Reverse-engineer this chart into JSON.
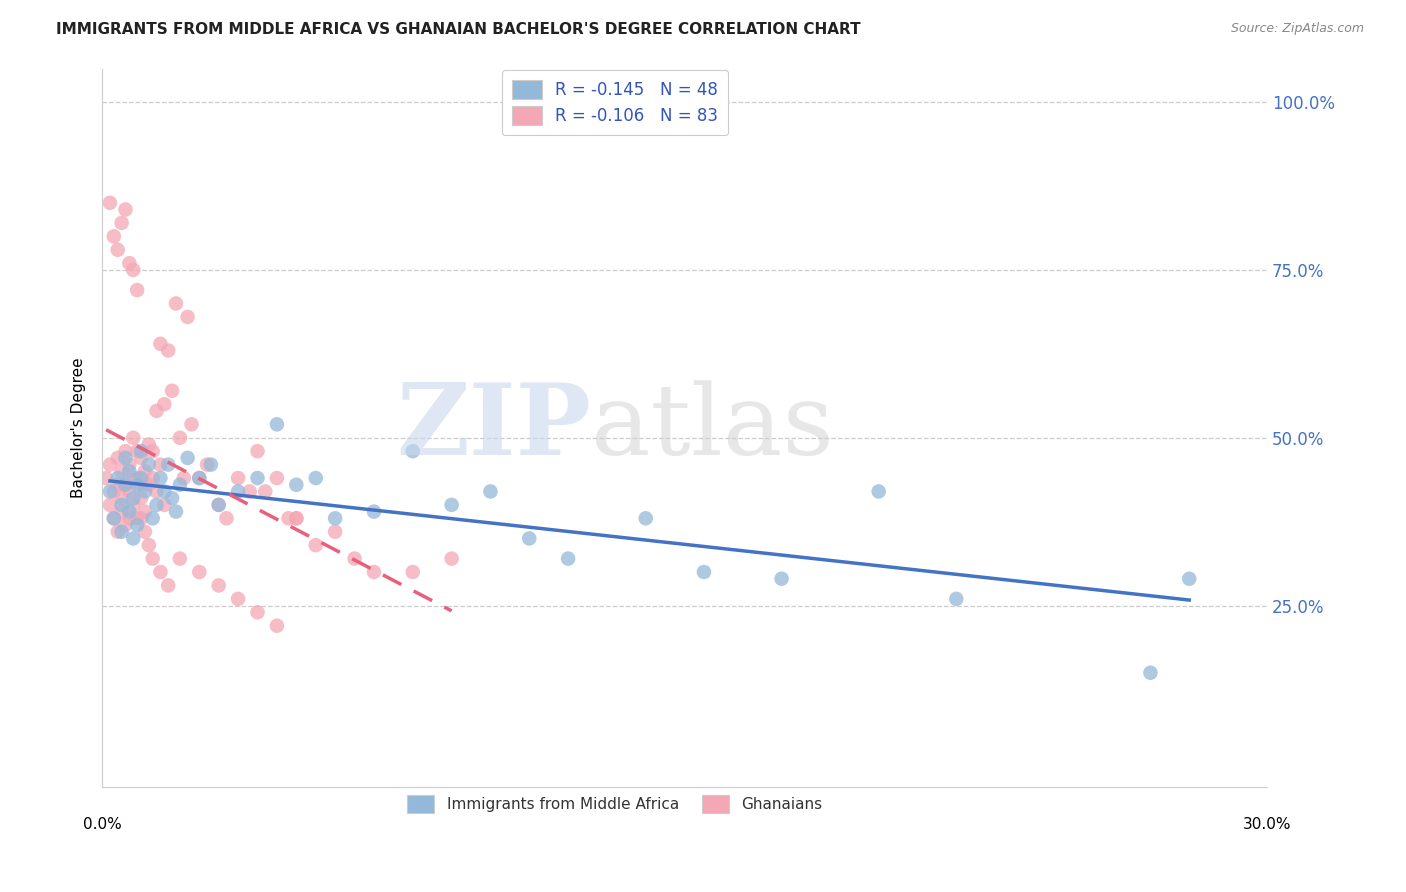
{
  "title": "IMMIGRANTS FROM MIDDLE AFRICA VS GHANAIAN BACHELOR'S DEGREE CORRELATION CHART",
  "source": "Source: ZipAtlas.com",
  "ylabel": "Bachelor's Degree",
  "ytick_labels": [
    "",
    "25.0%",
    "50.0%",
    "75.0%",
    "100.0%"
  ],
  "ytick_positions": [
    0.0,
    0.25,
    0.5,
    0.75,
    1.0
  ],
  "xlim": [
    0.0,
    0.3
  ],
  "ylim": [
    -0.02,
    1.05
  ],
  "blue_R": -0.145,
  "blue_N": 48,
  "pink_R": -0.106,
  "pink_N": 83,
  "blue_color": "#94B8D9",
  "pink_color": "#F4A7B5",
  "blue_line_color": "#4472C4",
  "pink_line_color": "#E8607A",
  "watermark_zip": "ZIP",
  "watermark_atlas": "atlas",
  "legend_label_blue": "Immigrants from Middle Africa",
  "legend_label_pink": "Ghanaians",
  "blue_scatter_x": [
    0.002,
    0.003,
    0.004,
    0.005,
    0.005,
    0.006,
    0.006,
    0.007,
    0.007,
    0.008,
    0.008,
    0.009,
    0.009,
    0.01,
    0.01,
    0.011,
    0.012,
    0.013,
    0.014,
    0.015,
    0.016,
    0.017,
    0.018,
    0.019,
    0.02,
    0.022,
    0.025,
    0.028,
    0.03,
    0.035,
    0.04,
    0.045,
    0.05,
    0.055,
    0.06,
    0.07,
    0.08,
    0.09,
    0.1,
    0.11,
    0.12,
    0.14,
    0.155,
    0.175,
    0.2,
    0.22,
    0.27,
    0.28
  ],
  "blue_scatter_y": [
    0.42,
    0.38,
    0.44,
    0.4,
    0.36,
    0.43,
    0.47,
    0.39,
    0.45,
    0.41,
    0.35,
    0.43,
    0.37,
    0.44,
    0.48,
    0.42,
    0.46,
    0.38,
    0.4,
    0.44,
    0.42,
    0.46,
    0.41,
    0.39,
    0.43,
    0.47,
    0.44,
    0.46,
    0.4,
    0.42,
    0.44,
    0.52,
    0.43,
    0.44,
    0.38,
    0.39,
    0.48,
    0.4,
    0.42,
    0.35,
    0.32,
    0.38,
    0.3,
    0.29,
    0.42,
    0.26,
    0.15,
    0.29
  ],
  "pink_scatter_x": [
    0.001,
    0.002,
    0.002,
    0.003,
    0.003,
    0.004,
    0.004,
    0.004,
    0.005,
    0.005,
    0.005,
    0.006,
    0.006,
    0.006,
    0.007,
    0.007,
    0.007,
    0.008,
    0.008,
    0.008,
    0.009,
    0.009,
    0.009,
    0.01,
    0.01,
    0.01,
    0.011,
    0.011,
    0.012,
    0.012,
    0.013,
    0.013,
    0.014,
    0.014,
    0.015,
    0.015,
    0.016,
    0.016,
    0.017,
    0.018,
    0.019,
    0.02,
    0.021,
    0.022,
    0.023,
    0.025,
    0.027,
    0.03,
    0.032,
    0.035,
    0.038,
    0.04,
    0.042,
    0.045,
    0.048,
    0.05,
    0.055,
    0.06,
    0.065,
    0.07,
    0.08,
    0.09,
    0.002,
    0.003,
    0.004,
    0.005,
    0.006,
    0.007,
    0.008,
    0.009,
    0.01,
    0.011,
    0.012,
    0.013,
    0.015,
    0.017,
    0.02,
    0.025,
    0.03,
    0.035,
    0.04,
    0.045,
    0.05
  ],
  "pink_scatter_y": [
    0.44,
    0.4,
    0.46,
    0.42,
    0.38,
    0.43,
    0.47,
    0.36,
    0.41,
    0.45,
    0.39,
    0.43,
    0.48,
    0.37,
    0.42,
    0.46,
    0.38,
    0.44,
    0.4,
    0.5,
    0.44,
    0.48,
    0.38,
    0.43,
    0.47,
    0.41,
    0.45,
    0.39,
    0.43,
    0.49,
    0.44,
    0.48,
    0.54,
    0.42,
    0.64,
    0.46,
    0.55,
    0.4,
    0.63,
    0.57,
    0.7,
    0.5,
    0.44,
    0.68,
    0.52,
    0.44,
    0.46,
    0.4,
    0.38,
    0.44,
    0.42,
    0.48,
    0.42,
    0.44,
    0.38,
    0.38,
    0.34,
    0.36,
    0.32,
    0.3,
    0.3,
    0.32,
    0.85,
    0.8,
    0.78,
    0.82,
    0.84,
    0.76,
    0.75,
    0.72,
    0.38,
    0.36,
    0.34,
    0.32,
    0.3,
    0.28,
    0.32,
    0.3,
    0.28,
    0.26,
    0.24,
    0.22,
    0.38
  ]
}
